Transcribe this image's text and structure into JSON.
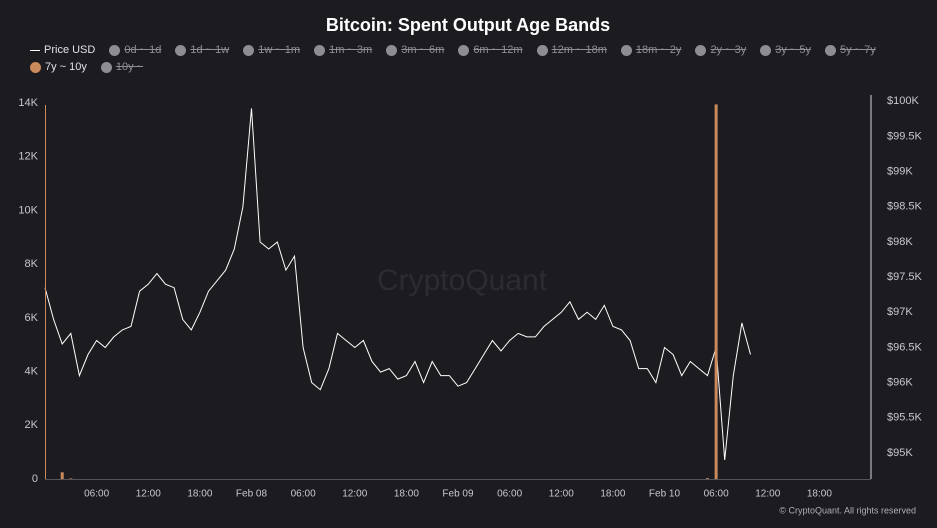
{
  "chart_data": {
    "type": "line_bar",
    "title": "Bitcoin: Spent Output Age Bands",
    "watermark": "CryptoQuant",
    "footer": "© CryptoQuant. All rights reserved",
    "x": [
      0,
      1,
      2,
      3,
      4,
      5,
      6,
      7,
      8,
      9,
      10,
      11,
      12,
      13,
      14,
      15,
      16,
      17,
      18,
      19,
      20,
      21,
      22,
      23,
      24,
      25,
      26,
      27,
      28,
      29,
      30,
      31,
      32,
      33,
      34,
      35,
      36,
      37,
      38,
      39,
      40,
      41,
      42,
      43,
      44,
      45,
      46,
      47,
      48,
      49,
      50,
      51,
      52,
      53,
      54,
      55,
      56,
      57,
      58,
      59,
      60,
      61,
      62,
      63,
      64,
      65,
      66,
      67,
      68,
      69,
      70,
      71,
      72,
      73,
      74,
      75,
      76,
      77,
      78,
      79,
      80,
      81,
      82
    ],
    "xlim": [
      0,
      96
    ],
    "xticks": [
      {
        "value": 6,
        "label": "06:00"
      },
      {
        "value": 12,
        "label": "12:00"
      },
      {
        "value": 18,
        "label": "18:00"
      },
      {
        "value": 24,
        "label": "Feb 08"
      },
      {
        "value": 30,
        "label": "06:00"
      },
      {
        "value": 36,
        "label": "12:00"
      },
      {
        "value": 42,
        "label": "18:00"
      },
      {
        "value": 48,
        "label": "Feb 09"
      },
      {
        "value": 54,
        "label": "06:00"
      },
      {
        "value": 60,
        "label": "12:00"
      },
      {
        "value": 66,
        "label": "18:00"
      },
      {
        "value": 72,
        "label": "Feb 10"
      },
      {
        "value": 78,
        "label": "06:00"
      },
      {
        "value": 84,
        "label": "12:00"
      },
      {
        "value": 90,
        "label": "18:00"
      }
    ],
    "ylim": [
      0,
      14300
    ],
    "yticks": [
      0,
      {
        "value": 2000,
        "label": "2K"
      },
      {
        "value": 4000,
        "label": "4K"
      },
      {
        "value": 6000,
        "label": "6K"
      },
      {
        "value": 8000,
        "label": "8K"
      },
      {
        "value": 10000,
        "label": "10K"
      },
      {
        "value": 12000,
        "label": "12K"
      },
      {
        "value": 14000,
        "label": "14K"
      }
    ],
    "y2lim": [
      94630,
      100090
    ],
    "y2ticks": [
      {
        "value": 95000,
        "label": "$95K"
      },
      {
        "value": 95500,
        "label": "$95.5K"
      },
      {
        "value": 96000,
        "label": "$96K"
      },
      {
        "value": 96500,
        "label": "$96.5K"
      },
      {
        "value": 97000,
        "label": "$97K"
      },
      {
        "value": 97500,
        "label": "$97.5K"
      },
      {
        "value": 98000,
        "label": "$98K"
      },
      {
        "value": 98500,
        "label": "$98.5K"
      },
      {
        "value": 99000,
        "label": "$99K"
      },
      {
        "value": 99500,
        "label": "$99.5K"
      },
      {
        "value": 100000,
        "label": "$100K"
      }
    ],
    "grid": false,
    "series": [
      {
        "name": "Price USD",
        "color": "#ffffff",
        "kind": "line",
        "axis": "y2",
        "values": [
          97350,
          96900,
          96550,
          96700,
          96100,
          96400,
          96600,
          96500,
          96650,
          96750,
          96800,
          97300,
          97400,
          97550,
          97400,
          97350,
          96900,
          96750,
          97000,
          97300,
          97450,
          97600,
          97900,
          98500,
          99900,
          98000,
          97900,
          98000,
          97600,
          97800,
          96500,
          96000,
          95900,
          96200,
          96700,
          96600,
          96500,
          96600,
          96300,
          96150,
          96200,
          96050,
          96100,
          96300,
          96000,
          96300,
          96100,
          96100,
          95950,
          96000,
          96200,
          96400,
          96600,
          96450,
          96600,
          96700,
          96650,
          96650,
          96800,
          96900,
          97000,
          97150,
          96900,
          97000,
          96900,
          97100,
          96800,
          96750,
          96600,
          96200,
          96200,
          96000,
          96500,
          96400,
          96100,
          96300,
          96200,
          96100,
          96500,
          94900,
          96100,
          96850,
          96400
        ]
      },
      {
        "name": "0d ~ 1d",
        "color": "#8e8d93",
        "hidden": true
      },
      {
        "name": "1d ~ 1w",
        "color": "#8e8d93",
        "hidden": true
      },
      {
        "name": "1w ~ 1m",
        "color": "#8e8d93",
        "hidden": true
      },
      {
        "name": "1m ~ 3m",
        "color": "#8e8d93",
        "hidden": true
      },
      {
        "name": "3m ~ 6m",
        "color": "#8e8d93",
        "hidden": true
      },
      {
        "name": "6m ~ 12m",
        "color": "#8e8d93",
        "hidden": true
      },
      {
        "name": "12m ~ 18m",
        "color": "#8e8d93",
        "hidden": true
      },
      {
        "name": "18m ~ 2y",
        "color": "#8e8d93",
        "hidden": true
      },
      {
        "name": "2y ~ 3y",
        "color": "#8e8d93",
        "hidden": true
      },
      {
        "name": "3y ~ 5y",
        "color": "#8e8d93",
        "hidden": true
      },
      {
        "name": "5y ~ 7y",
        "color": "#8e8d93",
        "hidden": true
      },
      {
        "name": "7y ~ 10y",
        "color": "#c98a5c",
        "kind": "bar",
        "values": [
          0,
          0,
          250,
          20,
          0,
          0,
          0,
          0,
          0,
          0,
          0,
          0,
          0,
          0,
          0,
          0,
          0,
          0,
          0,
          0,
          0,
          0,
          0,
          0,
          0,
          0,
          0,
          0,
          0,
          0,
          0,
          0,
          0,
          0,
          0,
          0,
          0,
          0,
          0,
          0,
          0,
          0,
          0,
          0,
          0,
          0,
          0,
          0,
          0,
          0,
          0,
          0,
          0,
          0,
          0,
          0,
          0,
          0,
          0,
          0,
          0,
          0,
          0,
          0,
          0,
          0,
          0,
          0,
          0,
          0,
          0,
          0,
          0,
          0,
          0,
          0,
          0,
          30,
          13950,
          0,
          0,
          0,
          0
        ]
      },
      {
        "name": "10y ~",
        "color": "#8e8d93",
        "hidden": true
      }
    ]
  }
}
